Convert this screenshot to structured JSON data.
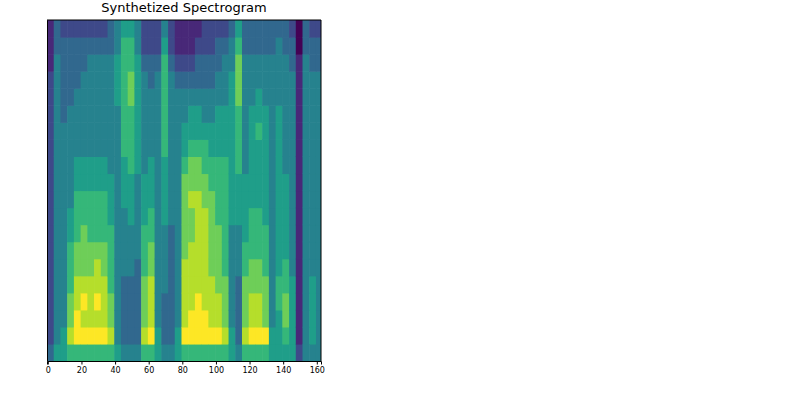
{
  "chart_data": {
    "type": "heatmap",
    "title": "Synthetized Spectrogram",
    "x": [
      1.5,
      5.5,
      9.5,
      13.5,
      17.5,
      21.5,
      25.5,
      29.5,
      33.5,
      37.5,
      41.5,
      45.5,
      49.5,
      53.5,
      57.5,
      61.5,
      65.5,
      69.5,
      73.5,
      77.5,
      81.5,
      85.5,
      89.5,
      93.5,
      97.5,
      101.5,
      105.5,
      109.5,
      113.5,
      117.5,
      121.5,
      125.5,
      129.5,
      133.5,
      137.5,
      141.5,
      145.5,
      149.5,
      153.5,
      157.5,
      161.5
    ],
    "y": [
      1.5,
      5.5,
      9.5,
      13.5,
      17.5,
      21.5,
      25.5,
      29.5,
      33.5,
      37.5,
      41.5,
      45.5,
      49.5,
      53.5,
      57.5,
      61.5,
      65.5,
      69.5,
      73.5,
      77.5
    ],
    "cells": [
      [
        3,
        2,
        2,
        2,
        2,
        2,
        2,
        2,
        2,
        2,
        2,
        2,
        2,
        2,
        2,
        2,
        2,
        1,
        1,
        1
      ],
      [
        5,
        4,
        4,
        4,
        4,
        4,
        4,
        4,
        4,
        4,
        4,
        4,
        4,
        4,
        4,
        4,
        4,
        4,
        3,
        3
      ],
      [
        5,
        5,
        4,
        4,
        4,
        4,
        4,
        4,
        4,
        4,
        4,
        4,
        4,
        4,
        3,
        3,
        3,
        3,
        3,
        2
      ],
      [
        6,
        8,
        7,
        7,
        6,
        6,
        6,
        5,
        5,
        4,
        4,
        4,
        4,
        4,
        4,
        3,
        3,
        3,
        3,
        2
      ],
      [
        6,
        9,
        9,
        8,
        8,
        7,
        7,
        6,
        6,
        6,
        5,
        5,
        4,
        4,
        4,
        4,
        3,
        3,
        3,
        2
      ],
      [
        6,
        9,
        8,
        9,
        8,
        7,
        7,
        7,
        6,
        6,
        5,
        5,
        4,
        4,
        4,
        4,
        4,
        3,
        3,
        2
      ],
      [
        6,
        9,
        8,
        8,
        8,
        7,
        7,
        6,
        6,
        6,
        5,
        5,
        4,
        4,
        4,
        4,
        4,
        4,
        3,
        2
      ],
      [
        6,
        9,
        8,
        9,
        8,
        8,
        7,
        6,
        6,
        6,
        5,
        5,
        4,
        4,
        4,
        4,
        4,
        4,
        3,
        2
      ],
      [
        6,
        9,
        8,
        8,
        8,
        7,
        7,
        6,
        6,
        6,
        5,
        5,
        4,
        4,
        4,
        4,
        4,
        4,
        3,
        2
      ],
      [
        6,
        8,
        7,
        7,
        6,
        6,
        6,
        6,
        5,
        5,
        5,
        4,
        4,
        4,
        4,
        4,
        4,
        4,
        3,
        3
      ],
      [
        5,
        4,
        4,
        4,
        4,
        4,
        4,
        4,
        4,
        4,
        4,
        4,
        4,
        4,
        4,
        5,
        5,
        5,
        4,
        4
      ],
      [
        4,
        3,
        3,
        3,
        3,
        4,
        4,
        4,
        4,
        5,
        5,
        5,
        6,
        6,
        6,
        6,
        6,
        6,
        6,
        5
      ],
      [
        4,
        3,
        3,
        3,
        3,
        4,
        4,
        4,
        5,
        5,
        5,
        6,
        6,
        6,
        6,
        7,
        7,
        6,
        6,
        5
      ],
      [
        4,
        3,
        3,
        3,
        3,
        3,
        4,
        4,
        4,
        4,
        4,
        5,
        5,
        5,
        5,
        5,
        5,
        5,
        4,
        4
      ],
      [
        6,
        8,
        7,
        7,
        7,
        6,
        6,
        6,
        5,
        5,
        5,
        4,
        4,
        4,
        4,
        4,
        4,
        3,
        2,
        2
      ],
      [
        6,
        9,
        8,
        8,
        8,
        7,
        7,
        6,
        6,
        5,
        5,
        5,
        4,
        4,
        4,
        4,
        3,
        3,
        2,
        2
      ],
      [
        5,
        5,
        4,
        4,
        4,
        4,
        4,
        4,
        4,
        4,
        4,
        4,
        4,
        4,
        4,
        4,
        4,
        3,
        2,
        2
      ],
      [
        4,
        3,
        3,
        3,
        4,
        4,
        4,
        4,
        5,
        5,
        5,
        5,
        6,
        6,
        6,
        6,
        6,
        6,
        5,
        4
      ],
      [
        4,
        3,
        3,
        3,
        3,
        3,
        3,
        3,
        4,
        4,
        4,
        4,
        4,
        4,
        4,
        4,
        4,
        3,
        2,
        2
      ],
      [
        5,
        5,
        4,
        4,
        4,
        4,
        4,
        4,
        4,
        4,
        4,
        4,
        4,
        4,
        4,
        4,
        3,
        2,
        1,
        1
      ],
      [
        6,
        9,
        8,
        8,
        8,
        8,
        7,
        7,
        7,
        7,
        7,
        6,
        5,
        5,
        4,
        4,
        3,
        2,
        1,
        1
      ],
      [
        6,
        9,
        9,
        8,
        8,
        8,
        8,
        7,
        7,
        8,
        7,
        7,
        6,
        5,
        5,
        4,
        3,
        2,
        1,
        1
      ],
      [
        6,
        9,
        9,
        9,
        8,
        8,
        8,
        8,
        8,
        8,
        7,
        7,
        6,
        5,
        5,
        4,
        3,
        3,
        2,
        1
      ],
      [
        6,
        9,
        9,
        8,
        8,
        8,
        8,
        8,
        8,
        7,
        7,
        6,
        6,
        5,
        4,
        4,
        3,
        3,
        2,
        2
      ],
      [
        6,
        9,
        8,
        8,
        8,
        7,
        7,
        7,
        7,
        7,
        6,
        6,
        5,
        5,
        4,
        4,
        3,
        3,
        2,
        2
      ],
      [
        6,
        9,
        8,
        8,
        7,
        7,
        7,
        7,
        6,
        6,
        6,
        6,
        5,
        5,
        5,
        4,
        4,
        3,
        3,
        2
      ],
      [
        6,
        8,
        7,
        7,
        7,
        6,
        6,
        6,
        6,
        6,
        6,
        6,
        5,
        5,
        5,
        4,
        4,
        4,
        3,
        2
      ],
      [
        5,
        5,
        4,
        4,
        4,
        4,
        4,
        4,
        5,
        5,
        5,
        5,
        5,
        5,
        5,
        5,
        5,
        4,
        4,
        3
      ],
      [
        4,
        3,
        3,
        3,
        3,
        4,
        4,
        4,
        5,
        5,
        5,
        6,
        6,
        6,
        6,
        7,
        7,
        7,
        6,
        5
      ],
      [
        6,
        8,
        7,
        7,
        7,
        6,
        6,
        5,
        5,
        5,
        5,
        4,
        4,
        4,
        4,
        4,
        4,
        4,
        3,
        3
      ],
      [
        6,
        9,
        8,
        8,
        7,
        7,
        6,
        6,
        6,
        5,
        5,
        5,
        5,
        5,
        5,
        4,
        4,
        4,
        3,
        3
      ],
      [
        6,
        9,
        8,
        8,
        7,
        7,
        6,
        6,
        6,
        5,
        5,
        5,
        5,
        6,
        5,
        5,
        4,
        4,
        3,
        3
      ],
      [
        6,
        9,
        7,
        7,
        7,
        6,
        6,
        6,
        5,
        5,
        5,
        5,
        5,
        5,
        5,
        4,
        4,
        4,
        3,
        3
      ],
      [
        5,
        5,
        4,
        4,
        4,
        4,
        4,
        4,
        4,
        4,
        4,
        4,
        4,
        4,
        4,
        4,
        4,
        4,
        3,
        3
      ],
      [
        5,
        5,
        5,
        6,
        6,
        5,
        5,
        5,
        5,
        5,
        5,
        5,
        5,
        5,
        5,
        4,
        4,
        4,
        4,
        3
      ],
      [
        5,
        6,
        7,
        7,
        6,
        6,
        5,
        5,
        5,
        5,
        5,
        4,
        4,
        4,
        4,
        4,
        4,
        4,
        3,
        3
      ],
      [
        5,
        5,
        5,
        5,
        5,
        4,
        4,
        4,
        4,
        4,
        4,
        4,
        4,
        4,
        4,
        4,
        4,
        3,
        3,
        2
      ],
      [
        2,
        1,
        1,
        1,
        1,
        1,
        1,
        1,
        1,
        1,
        1,
        1,
        1,
        1,
        1,
        1,
        1,
        1,
        0,
        0
      ],
      [
        4,
        4,
        4,
        4,
        4,
        4,
        4,
        4,
        4,
        4,
        4,
        4,
        4,
        4,
        4,
        4,
        4,
        4,
        3,
        3
      ],
      [
        4,
        5,
        5,
        5,
        5,
        4,
        4,
        4,
        4,
        4,
        4,
        4,
        4,
        4,
        4,
        4,
        4,
        3,
        3,
        2
      ],
      [
        4,
        4,
        4,
        4,
        4,
        4,
        4,
        4,
        4,
        4,
        4,
        4,
        4,
        4,
        4,
        4,
        4,
        3,
        3,
        2
      ]
    ],
    "zlim": [
      0,
      9
    ],
    "color": "viridis",
    "xlim": [
      -0.5,
      162.5
    ],
    "ylim": [
      -0.5,
      79.5
    ],
    "xticks": [
      0,
      20,
      40,
      60,
      80,
      100,
      120,
      140,
      160
    ],
    "tick_labels": "x"
  }
}
